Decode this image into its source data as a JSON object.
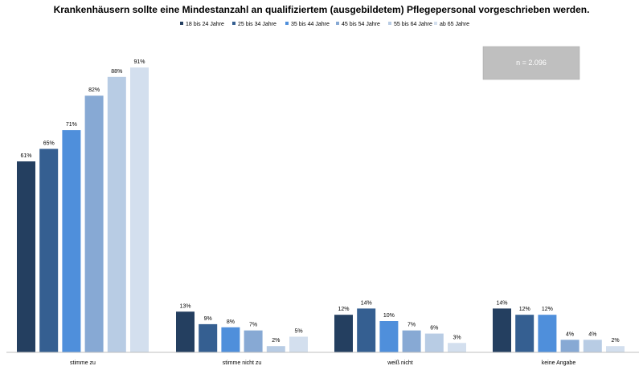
{
  "chart_data": {
    "type": "bar",
    "title": "Krankenhäusern sollte eine Mindestanzahl an qualifiziertem (ausgebildetem) Pflegepersonal vorgeschrieben werden.",
    "categories": [
      "stimme zu",
      "stimme nicht zu",
      "weiß nicht",
      "keine Angabe"
    ],
    "series": [
      {
        "name": "18 bis 24 Jahre",
        "color": "#243f60",
        "values": [
          61,
          13,
          12,
          14
        ]
      },
      {
        "name": "25 bis 34 Jahre",
        "color": "#355f91",
        "values": [
          65,
          9,
          14,
          12
        ]
      },
      {
        "name": "35 bis 44 Jahre",
        "color": "#4f8fdb",
        "values": [
          71,
          8,
          10,
          12
        ]
      },
      {
        "name": "45 bis 54 Jahre",
        "color": "#87a9d4",
        "values": [
          82,
          7,
          7,
          4
        ]
      },
      {
        "name": "55 bis 64 Jahre",
        "color": "#b8cce4",
        "values": [
          88,
          2,
          6,
          4
        ]
      },
      {
        "name": "ab 65 Jahre",
        "color": "#d3dfee",
        "values": [
          91,
          5,
          3,
          2
        ]
      }
    ],
    "value_suffix": "%",
    "ylim": [
      0,
      100
    ],
    "grid": false,
    "legend_position": "top-center",
    "annotation": "n = 2.096",
    "annotation_bg": "#bfbfbf"
  }
}
